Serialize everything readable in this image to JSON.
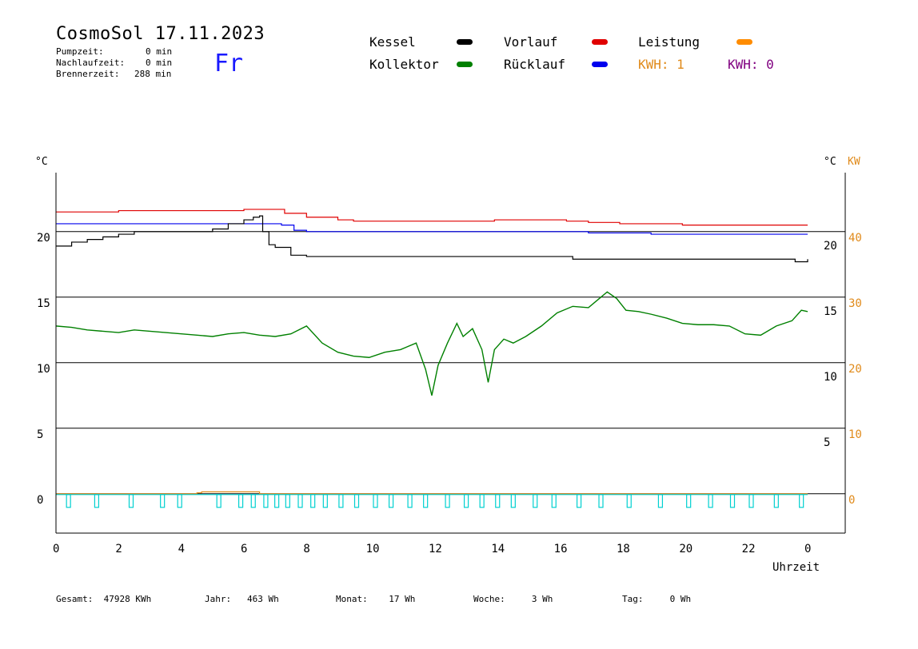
{
  "header": {
    "title": "CosmoSol 17.11.2023",
    "day": "Fr",
    "stats": [
      {
        "label": "Pumpzeit:",
        "value": "0 min"
      },
      {
        "label": "Nachlaufzeit:",
        "value": "0 min"
      },
      {
        "label": "Brennerzeit:",
        "value": "288 min"
      }
    ]
  },
  "legend": {
    "kessel": {
      "label": "Kessel",
      "color": "#000000"
    },
    "kollektor": {
      "label": "Kollektor",
      "color": "#008000"
    },
    "vorlauf": {
      "label": "Vorlauf",
      "color": "#e00000"
    },
    "ruecklauf": {
      "label": "Rücklauf",
      "color": "#0000ee"
    },
    "leistung": {
      "label": "Leistung",
      "color": "#ff8c00"
    },
    "kwh1": {
      "label": "KWH: 1",
      "color": "#e08a1a"
    },
    "kwh2": {
      "label": "KWH: 0",
      "color": "#800080"
    }
  },
  "footer": {
    "gesamt": "Gesamt:  47928 KWh",
    "jahr": "Jahr:   463 Wh",
    "monat": "Monat:    17 Wh",
    "woche": "Woche:     3 Wh",
    "tag": "Tag:     0 Wh"
  },
  "chart_data": {
    "type": "line",
    "xlabel": "Uhrzeit",
    "ylabel": "°C",
    "y2label": "KW",
    "xlim": [
      0,
      24
    ],
    "ylim": [
      -3,
      24.5
    ],
    "y2lim": [
      -6,
      49
    ],
    "x_ticks": [
      "0",
      "2",
      "4",
      "6",
      "8",
      "10",
      "12",
      "14",
      "16",
      "18",
      "20",
      "22",
      "0"
    ],
    "y_ticks_left": [
      "0",
      "5",
      "10",
      "15",
      "20"
    ],
    "y_ticks_right": [
      "5",
      "10",
      "15",
      "20"
    ],
    "y2_ticks": [
      "0",
      "10",
      "20",
      "30",
      "40"
    ],
    "grid": "horizontal",
    "series": [
      {
        "name": "Vorlauf",
        "color": "#e00000",
        "x": [
          0,
          2,
          4,
          6,
          6.8,
          7.3,
          8,
          9,
          9.5,
          12,
          14,
          15.5,
          16.3,
          17,
          18,
          19,
          20,
          22,
          23,
          24
        ],
        "y": [
          21.5,
          21.6,
          21.6,
          21.7,
          21.7,
          21.4,
          21.1,
          20.9,
          20.8,
          20.8,
          20.9,
          20.9,
          20.8,
          20.7,
          20.6,
          20.6,
          20.5,
          20.5,
          20.5,
          20.5
        ]
      },
      {
        "name": "Rücklauf",
        "color": "#0000ee",
        "x": [
          0,
          2,
          4,
          6,
          7.2,
          7.6,
          8,
          12,
          16,
          17,
          19,
          20,
          22,
          24
        ],
        "y": [
          20.6,
          20.6,
          20.6,
          20.6,
          20.5,
          20.1,
          20.0,
          20.0,
          20.0,
          19.9,
          19.8,
          19.8,
          19.8,
          19.8
        ]
      },
      {
        "name": "Kessel",
        "color": "#000000",
        "x": [
          0,
          0.5,
          1,
          1.5,
          2,
          2.5,
          3,
          4,
          4.5,
          5,
          5.5,
          6,
          6.3,
          6.5,
          6.6,
          6.8,
          7,
          7.5,
          8,
          10,
          12,
          14,
          15,
          16,
          16.5,
          18,
          20,
          22,
          23.5,
          23.6,
          24
        ],
        "y": [
          18.9,
          19.2,
          19.4,
          19.6,
          19.8,
          20.0,
          20.0,
          20.0,
          20.0,
          20.2,
          20.6,
          20.9,
          21.1,
          21.2,
          20.0,
          19.0,
          18.8,
          18.2,
          18.1,
          18.1,
          18.1,
          18.1,
          18.1,
          18.1,
          17.9,
          17.9,
          17.9,
          17.9,
          17.9,
          17.7,
          17.9
        ]
      },
      {
        "name": "Kollektor",
        "color": "#008000",
        "x": [
          0,
          0.5,
          1,
          1.5,
          2,
          2.5,
          3,
          3.5,
          4,
          4.5,
          5,
          5.5,
          6,
          6.5,
          7,
          7.5,
          8,
          8.5,
          9,
          9.5,
          10,
          10.5,
          11,
          11.5,
          11.8,
          12,
          12.2,
          12.5,
          12.8,
          13,
          13.3,
          13.6,
          13.8,
          14,
          14.3,
          14.6,
          15,
          15.5,
          16,
          16.5,
          17,
          17.3,
          17.6,
          17.9,
          18.2,
          18.6,
          19,
          19.5,
          20,
          20.5,
          21,
          21.5,
          22,
          22.5,
          23,
          23.5,
          23.8,
          24
        ],
        "y": [
          12.8,
          12.7,
          12.5,
          12.4,
          12.3,
          12.5,
          12.4,
          12.3,
          12.2,
          12.1,
          12.0,
          12.2,
          12.3,
          12.1,
          12.0,
          12.2,
          12.8,
          11.5,
          10.8,
          10.5,
          10.4,
          10.8,
          11.0,
          11.5,
          9.5,
          7.5,
          9.8,
          11.5,
          13.0,
          12.0,
          12.6,
          11.0,
          8.5,
          11.0,
          11.8,
          11.5,
          12.0,
          12.8,
          13.8,
          14.3,
          14.2,
          14.8,
          15.4,
          14.9,
          14.0,
          13.9,
          13.7,
          13.4,
          13.0,
          12.9,
          12.9,
          12.8,
          12.2,
          12.1,
          12.8,
          13.2,
          14.0,
          13.9
        ]
      },
      {
        "name": "Leistung",
        "color": "#e08a1a",
        "x": [
          0,
          4.5,
          4.5,
          4.65,
          4.65,
          6.5,
          6.5,
          24
        ],
        "y": [
          0,
          0,
          0.15,
          0.15,
          0.3,
          0.3,
          0,
          0
        ]
      },
      {
        "name": "Pumpe",
        "color": "#00d0d0",
        "pulses": [
          0.4,
          1.3,
          2.4,
          3.4,
          3.95,
          5.2,
          5.9,
          6.3,
          6.7,
          7.05,
          7.4,
          7.8,
          8.2,
          8.6,
          9.1,
          9.6,
          10.2,
          10.7,
          11.3,
          11.8,
          12.5,
          13.1,
          13.6,
          14.1,
          14.6,
          15.3,
          15.9,
          16.7,
          17.4,
          18.3,
          19.3,
          20.2,
          20.9,
          21.6,
          22.2,
          23.0,
          23.8
        ]
      }
    ]
  }
}
